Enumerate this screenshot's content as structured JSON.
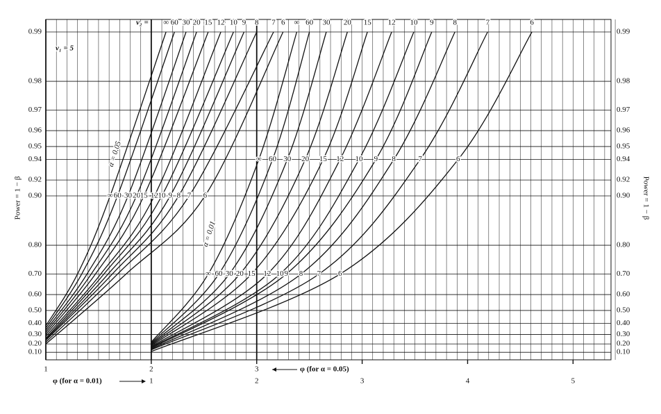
{
  "chart_data": {
    "type": "line",
    "nu1_label": "ν₁ = 5",
    "nu2_label": "ν₂ =",
    "ylabel": "Power = 1 − β",
    "xlabel": "φ (for α = 0.05)",
    "x2label": "φ (for α = 0.01)",
    "group_labels": [
      "α = 0.05",
      "α = 0.01"
    ],
    "yscale": "log-complement",
    "grid": true,
    "color": "#111111",
    "xlim": [
      1,
      6.36
    ],
    "xticks": [
      1,
      2,
      3
    ],
    "x2lim": [
      0,
      5.36
    ],
    "x2ticks": [
      1,
      2,
      3,
      4,
      5
    ],
    "ylim": [
      0,
      0.99
    ],
    "yticks": [
      {
        "value": 0.1,
        "label": "0.10"
      },
      {
        "value": 0.2,
        "label": "0.20"
      },
      {
        "value": 0.3,
        "label": "0.30"
      },
      {
        "value": 0.4,
        "label": "0.40"
      },
      {
        "value": 0.5,
        "label": "0.50"
      },
      {
        "value": 0.6,
        "label": "0.60"
      },
      {
        "value": 0.7,
        "label": "0.70"
      },
      {
        "value": 0.8,
        "label": "0.80"
      },
      {
        "value": 0.9,
        "label": "0.90"
      },
      0.92,
      0.94,
      0.95,
      0.96,
      0.97,
      0.98,
      0.99
    ],
    "series": [
      {
        "name": "∞",
        "axis": "x",
        "x": [
          1,
          1.3,
          1.61,
          2.14
        ],
        "values": [
          0.38,
          0.7,
          0.9,
          0.99
        ]
      },
      {
        "name": "60",
        "axis": "x",
        "x": [
          1,
          1.34,
          1.68,
          2.22
        ],
        "values": [
          0.36,
          0.7,
          0.9,
          0.99
        ]
      },
      {
        "name": "30",
        "axis": "x",
        "x": [
          1,
          1.39,
          1.78,
          2.33
        ],
        "values": [
          0.34,
          0.7,
          0.9,
          0.99
        ]
      },
      {
        "name": "20",
        "axis": "x",
        "x": [
          1,
          1.43,
          1.86,
          2.43
        ],
        "values": [
          0.32,
          0.7,
          0.9,
          0.99
        ]
      },
      {
        "name": "15",
        "axis": "x",
        "x": [
          1,
          1.47,
          1.93,
          2.54
        ],
        "values": [
          0.3,
          0.7,
          0.9,
          0.99
        ]
      },
      {
        "name": "12",
        "axis": "x",
        "x": [
          1,
          1.52,
          2.03,
          2.66
        ],
        "values": [
          0.28,
          0.7,
          0.9,
          0.99
        ]
      },
      {
        "name": "10",
        "axis": "x",
        "x": [
          1,
          1.55,
          2.1,
          2.78
        ],
        "values": [
          0.26,
          0.7,
          0.9,
          0.99
        ]
      },
      {
        "name": "9",
        "axis": "x",
        "x": [
          1,
          1.59,
          2.18,
          2.88
        ],
        "values": [
          0.25,
          0.7,
          0.9,
          0.99
        ]
      },
      {
        "name": "8",
        "axis": "x",
        "x": [
          1,
          1.63,
          2.26,
          3.0
        ],
        "values": [
          0.24,
          0.7,
          0.9,
          0.99
        ]
      },
      {
        "name": "7",
        "axis": "x",
        "x": [
          1,
          1.68,
          2.36,
          3.16
        ],
        "values": [
          0.22,
          0.7,
          0.9,
          0.99
        ]
      },
      {
        "name": "6",
        "axis": "x",
        "x": [
          1,
          1.76,
          2.51,
          3.25
        ],
        "values": [
          0.2,
          0.7,
          0.9,
          0.99
        ]
      },
      {
        "name": "∞",
        "axis": "x2",
        "x": [
          1,
          1.54,
          2.02,
          2.38
        ],
        "values": [
          0.22,
          0.7,
          0.94,
          0.99
        ]
      },
      {
        "name": "60",
        "axis": "x2",
        "x": [
          1,
          1.64,
          2.15,
          2.5
        ],
        "values": [
          0.21,
          0.7,
          0.94,
          0.99
        ]
      },
      {
        "name": "30",
        "axis": "x2",
        "x": [
          1,
          1.74,
          2.29,
          2.66
        ],
        "values": [
          0.2,
          0.7,
          0.94,
          0.99
        ]
      },
      {
        "name": "20",
        "axis": "x2",
        "x": [
          1,
          1.84,
          2.46,
          2.86
        ],
        "values": [
          0.19,
          0.7,
          0.94,
          0.99
        ]
      },
      {
        "name": "15",
        "axis": "x2",
        "x": [
          1,
          1.95,
          2.63,
          3.05
        ],
        "values": [
          0.18,
          0.7,
          0.94,
          0.99
        ]
      },
      {
        "name": "12",
        "axis": "x2",
        "x": [
          1,
          2.1,
          2.79,
          3.28
        ],
        "values": [
          0.17,
          0.7,
          0.94,
          0.99
        ]
      },
      {
        "name": "10",
        "axis": "x2",
        "x": [
          1,
          2.22,
          2.97,
          3.49
        ],
        "values": [
          0.16,
          0.7,
          0.94,
          0.99
        ]
      },
      {
        "name": "9",
        "axis": "x2",
        "x": [
          1,
          2.28,
          3.13,
          3.66
        ],
        "values": [
          0.15,
          0.7,
          0.94,
          0.99
        ]
      },
      {
        "name": "8",
        "axis": "x2",
        "x": [
          1,
          2.42,
          3.3,
          3.88
        ],
        "values": [
          0.14,
          0.7,
          0.94,
          0.99
        ]
      },
      {
        "name": "7",
        "axis": "x2",
        "x": [
          1,
          2.59,
          3.55,
          4.19
        ],
        "values": [
          0.13,
          0.7,
          0.94,
          0.99
        ]
      },
      {
        "name": "6",
        "axis": "x2",
        "x": [
          1,
          2.79,
          3.91,
          4.61
        ],
        "values": [
          0.11,
          0.7,
          0.94,
          0.99
        ]
      }
    ]
  }
}
